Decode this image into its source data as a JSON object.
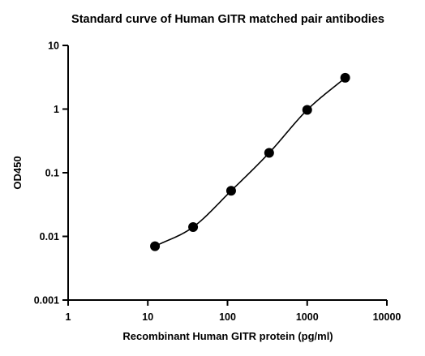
{
  "chart_data": {
    "type": "scatter",
    "title": "Standard curve of Human GITR matched pair antibodies",
    "xlabel": "Recombinant Human GITR protein (pg/ml)",
    "ylabel": "OD450",
    "xscale": "log",
    "yscale": "log",
    "xlim": [
      1,
      10000
    ],
    "ylim": [
      0.001,
      10
    ],
    "xticks": [
      "1",
      "10",
      "100",
      "1000",
      "10000"
    ],
    "yticks": [
      "0.001",
      "0.01",
      "0.1",
      "1",
      "10"
    ],
    "grid": false,
    "legend": "none",
    "fit": "four-parameter logistic curve",
    "colors": {
      "marker": "#000000",
      "curve": "#000000",
      "axis": "#000000"
    },
    "series": [
      {
        "x": [
          12.3,
          37,
          111,
          333,
          1000,
          3000
        ],
        "y": [
          0.007,
          0.014,
          0.052,
          0.205,
          0.97,
          3.1
        ]
      }
    ]
  }
}
